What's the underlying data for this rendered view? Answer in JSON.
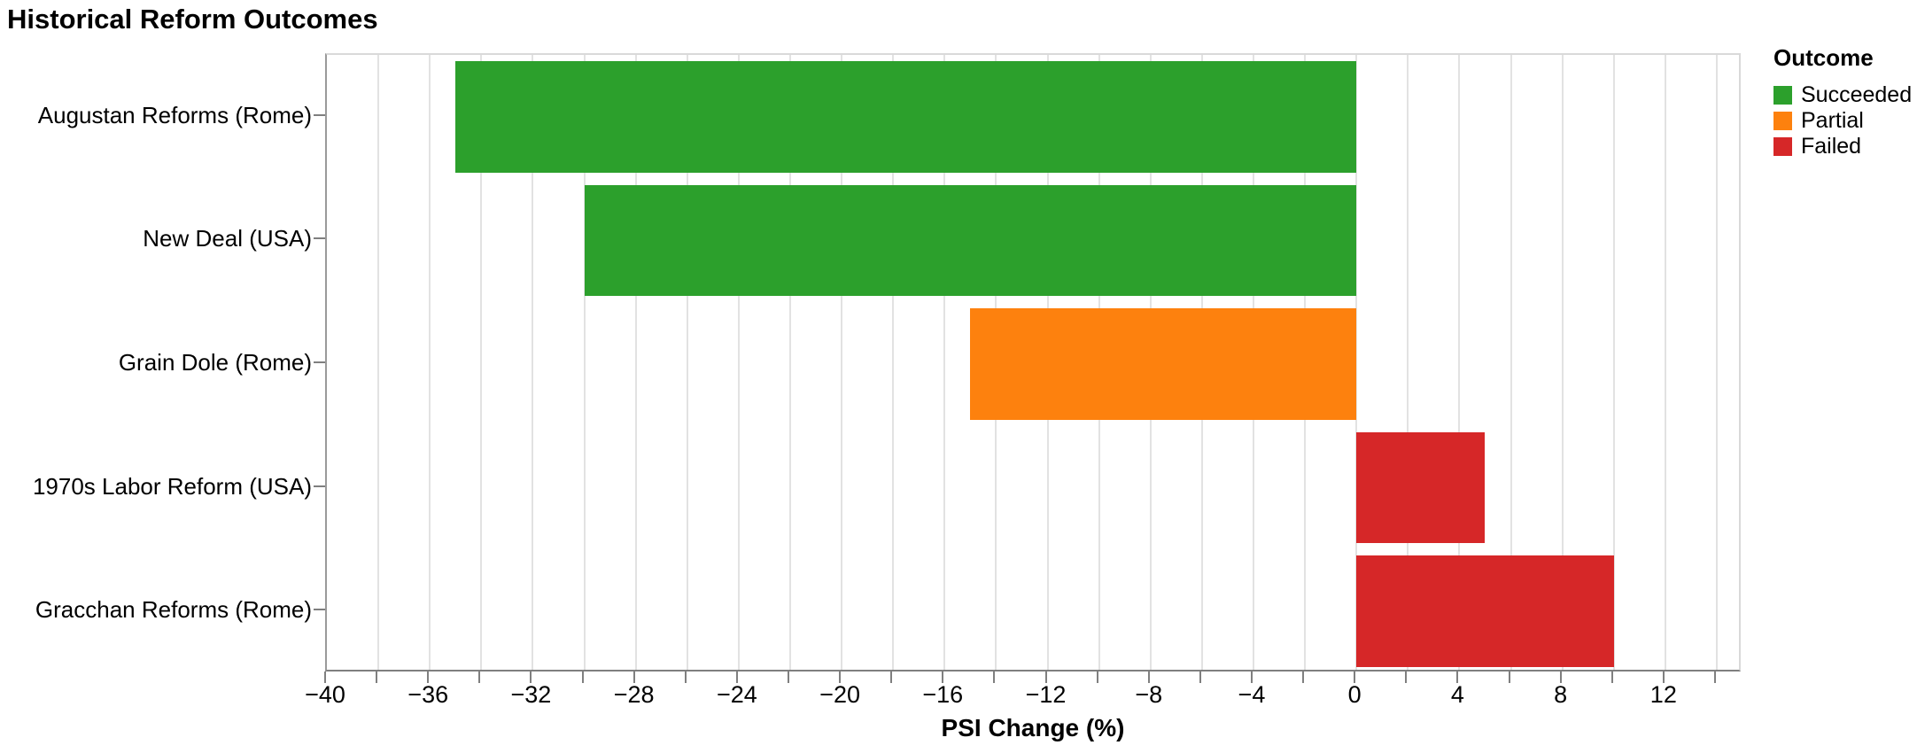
{
  "title": "Historical Reform Outcomes",
  "legend": {
    "title": "Outcome",
    "items": [
      {
        "label": "Succeeded",
        "color": "#2ca02c"
      },
      {
        "label": "Partial",
        "color": "#fd810e"
      },
      {
        "label": "Failed",
        "color": "#d62728"
      }
    ]
  },
  "chart_data": {
    "type": "bar",
    "orientation": "horizontal",
    "title": "Historical Reform Outcomes",
    "xlabel": "PSI Change (%)",
    "ylabel": "",
    "categories": [
      "Augustan Reforms (Rome)",
      "New Deal (USA)",
      "Grain Dole (Rome)",
      "1970s Labor Reform (USA)",
      "Gracchan Reforms (Rome)"
    ],
    "values": [
      -35,
      -30,
      -15,
      5,
      10
    ],
    "series_key": "Outcome",
    "outcomes": [
      "Succeeded",
      "Succeeded",
      "Partial",
      "Failed",
      "Failed"
    ],
    "bar_colors": [
      "#2ca02c",
      "#2ca02c",
      "#fd810e",
      "#d62728",
      "#d62728"
    ],
    "xlim": [
      -40,
      15
    ],
    "x_major_ticks": [
      -40,
      -36,
      -32,
      -28,
      -24,
      -20,
      -16,
      -12,
      -8,
      -4,
      0,
      4,
      8,
      12
    ],
    "x_tick_labels": [
      "−40",
      "−36",
      "−32",
      "−28",
      "−24",
      "−20",
      "−16",
      "−12",
      "−8",
      "−4",
      "0",
      "4",
      "8",
      "12"
    ],
    "x_minor_step": 2,
    "grid": "vertical gridlines every 2 units, light grey, white background",
    "legend_position": "right-top"
  },
  "colors": {
    "succeeded": "#2ca02c",
    "partial": "#fd810e",
    "failed": "#d62728",
    "gridline": "#e2e2e2",
    "panel_border": "#d9d9d9",
    "axis": "#7f7f7f",
    "text": "#000000",
    "background": "#ffffff"
  }
}
